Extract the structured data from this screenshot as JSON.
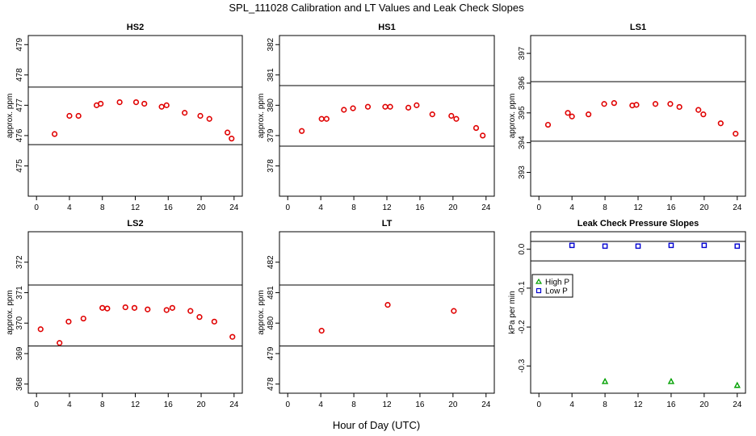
{
  "title": "SPL_111028  Calibration and LT Values and Leak Check Slopes",
  "xlabel": "Hour of Day (UTC)",
  "chart_data": [
    {
      "type": "scatter",
      "title": "HS2",
      "ylabel": "approx. ppm",
      "xlim": [
        -1,
        25
      ],
      "ylim": [
        474,
        479.3
      ],
      "xticks": [
        "0",
        "4",
        "8",
        "12",
        "16",
        "20",
        "24"
      ],
      "yticks": [
        "475",
        "476",
        "477",
        "478",
        "479"
      ],
      "hlines": [
        477.6,
        475.7
      ],
      "color": "#e00000",
      "x": [
        2.2,
        4,
        5.1,
        7.3,
        7.8,
        10.1,
        12.1,
        13.1,
        15.2,
        15.8,
        18,
        19.9,
        21,
        23.2,
        23.7
      ],
      "y": [
        476.05,
        476.65,
        476.65,
        477.0,
        477.05,
        477.1,
        477.1,
        477.05,
        476.95,
        477.0,
        476.75,
        476.65,
        476.55,
        476.1,
        475.9
      ]
    },
    {
      "type": "scatter",
      "title": "HS1",
      "ylabel": "approx. ppm",
      "xlim": [
        -1,
        25
      ],
      "ylim": [
        377,
        382.3
      ],
      "xticks": [
        "0",
        "4",
        "8",
        "12",
        "16",
        "20",
        "24"
      ],
      "yticks": [
        "378",
        "379",
        "380",
        "381",
        "382"
      ],
      "hlines": [
        380.65,
        378.65
      ],
      "color": "#e00000",
      "x": [
        1.7,
        4.1,
        4.7,
        6.8,
        7.9,
        9.7,
        11.8,
        12.4,
        14.6,
        15.6,
        17.5,
        19.8,
        20.4,
        22.8,
        23.6
      ],
      "y": [
        379.15,
        379.55,
        379.55,
        379.85,
        379.9,
        379.95,
        379.95,
        379.95,
        379.92,
        380.0,
        379.7,
        379.65,
        379.55,
        379.25,
        379.0
      ]
    },
    {
      "type": "scatter",
      "title": "LS1",
      "ylabel": "approx. ppm",
      "xlim": [
        -1,
        25
      ],
      "ylim": [
        392.2,
        397.6
      ],
      "xticks": [
        "0",
        "4",
        "8",
        "12",
        "16",
        "20",
        "24"
      ],
      "yticks": [
        "393",
        "394",
        "395",
        "396",
        "397"
      ],
      "hlines": [
        396.05,
        394.05
      ],
      "color": "#e00000",
      "x": [
        1.1,
        3.5,
        4.0,
        6.0,
        7.9,
        9.1,
        11.3,
        11.8,
        14.1,
        15.9,
        17.0,
        19.3,
        19.9,
        22.0,
        23.8
      ],
      "y": [
        394.6,
        395.0,
        394.88,
        394.95,
        395.3,
        395.33,
        395.25,
        395.27,
        395.3,
        395.3,
        395.2,
        395.1,
        394.95,
        394.65,
        394.3
      ]
    },
    {
      "type": "scatter",
      "title": "LS2",
      "ylabel": "approx. ppm",
      "xlim": [
        -1,
        25
      ],
      "ylim": [
        367.7,
        373.0
      ],
      "xticks": [
        "0",
        "4",
        "8",
        "12",
        "16",
        "20",
        "24"
      ],
      "yticks": [
        "368",
        "369",
        "370",
        "371",
        "372"
      ],
      "hlines": [
        371.25,
        369.25
      ],
      "color": "#e00000",
      "x": [
        0.5,
        2.8,
        3.9,
        5.7,
        8.0,
        8.6,
        10.8,
        11.9,
        13.5,
        15.8,
        16.5,
        18.7,
        19.8,
        21.6,
        23.8
      ],
      "y": [
        369.8,
        369.35,
        370.05,
        370.15,
        370.5,
        370.48,
        370.52,
        370.5,
        370.45,
        370.43,
        370.5,
        370.4,
        370.2,
        370.05,
        369.55
      ]
    },
    {
      "type": "scatter",
      "title": "LT",
      "ylabel": "approx. ppm",
      "xlim": [
        -1,
        25
      ],
      "ylim": [
        477.7,
        483.0
      ],
      "xticks": [
        "0",
        "4",
        "8",
        "12",
        "16",
        "20",
        "24"
      ],
      "yticks": [
        "478",
        "479",
        "480",
        "481",
        "482"
      ],
      "hlines": [
        481.25,
        479.25
      ],
      "color": "#e00000",
      "x": [
        4.1,
        12.1,
        20.1
      ],
      "y": [
        479.75,
        480.6,
        480.4
      ]
    },
    {
      "type": "scatter",
      "title": "Leak Check Pressure Slopes",
      "ylabel": "kPa per min",
      "xlim": [
        -1,
        25
      ],
      "ylim": [
        -0.37,
        0.045
      ],
      "xticks": [
        "0",
        "4",
        "8",
        "12",
        "16",
        "20",
        "24"
      ],
      "yticks": [
        "0.0",
        "-0.1",
        "-0.2",
        "-0.3"
      ],
      "hlines": [
        0.02,
        -0.03
      ],
      "legend": {
        "position": "left",
        "entries": [
          "High P",
          "Low P"
        ]
      },
      "series": [
        {
          "name": "High P",
          "color": "#00a000",
          "x": [
            8,
            16,
            24
          ],
          "y": [
            -0.34,
            -0.34,
            -0.35
          ]
        },
        {
          "name": "Low P",
          "color": "#0000d0",
          "x": [
            4,
            8,
            12,
            16,
            20,
            24
          ],
          "y": [
            0.01,
            0.008,
            0.008,
            0.01,
            0.01,
            0.008
          ]
        }
      ]
    }
  ]
}
